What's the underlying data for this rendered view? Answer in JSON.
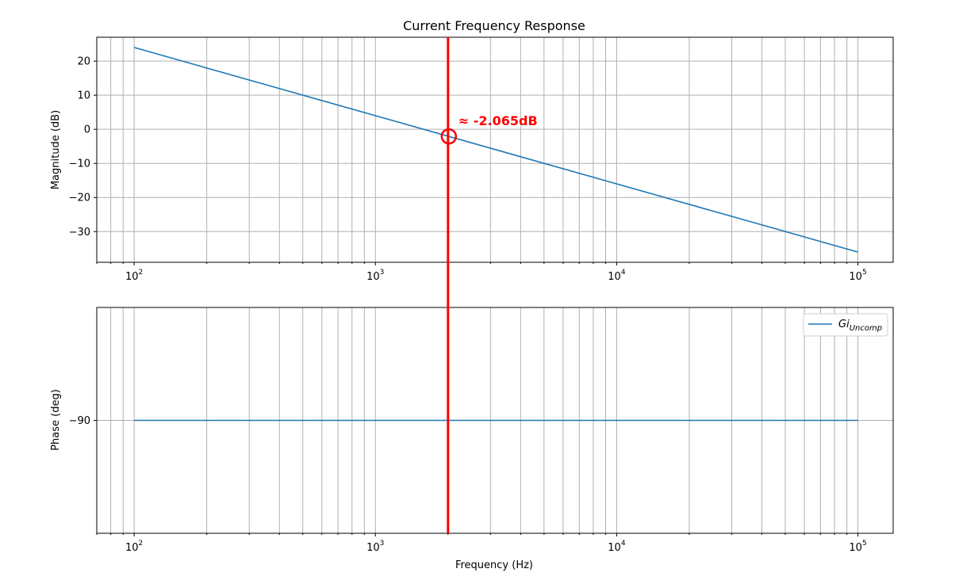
{
  "chart_data": [
    {
      "panel": "magnitude",
      "type": "line",
      "title": "Current Frequency Response",
      "ylabel": "Magnitude (dB)",
      "xlabel": "",
      "xscale": "log",
      "xlim": [
        70,
        140000
      ],
      "ylim": [
        -39,
        27
      ],
      "yticks": [
        20,
        10,
        0,
        -10,
        -20,
        -30
      ],
      "xticks": [
        {
          "value": 100,
          "base": "10",
          "exp": "2"
        },
        {
          "value": 1000,
          "base": "10",
          "exp": "3"
        },
        {
          "value": 10000,
          "base": "10",
          "exp": "4"
        },
        {
          "value": 100000,
          "base": "10",
          "exp": "5"
        }
      ],
      "grid": true,
      "series": [
        {
          "x": [
            100,
            100000
          ],
          "y": [
            24.0,
            -36.0
          ],
          "color": "#1f77b4"
        }
      ],
      "marker": {
        "frequency": 2000,
        "value": -2.065,
        "label": "≈ -2.065dB",
        "color": "#ff0000"
      }
    },
    {
      "panel": "phase",
      "type": "line",
      "title": "",
      "ylabel": "Phase (deg)",
      "xlabel": "Frequency (Hz)",
      "xscale": "log",
      "xlim": [
        70,
        140000
      ],
      "ylim": [
        -123,
        -57
      ],
      "yticks": [
        -90
      ],
      "ytick_labels": [
        "−90"
      ],
      "xticks": [
        {
          "value": 100,
          "base": "10",
          "exp": "2"
        },
        {
          "value": 1000,
          "base": "10",
          "exp": "3"
        },
        {
          "value": 10000,
          "base": "10",
          "exp": "4"
        },
        {
          "value": 100000,
          "base": "10",
          "exp": "5"
        }
      ],
      "grid": true,
      "legend": {
        "placement": "upper right",
        "label_main": "Gi",
        "label_sub": "Uncomp"
      },
      "series": [
        {
          "x": [
            100,
            100000
          ],
          "y": [
            -90,
            -90
          ],
          "color": "#1f77b4"
        }
      ],
      "marker": {
        "frequency": 2000,
        "color": "#ff0000"
      }
    }
  ]
}
